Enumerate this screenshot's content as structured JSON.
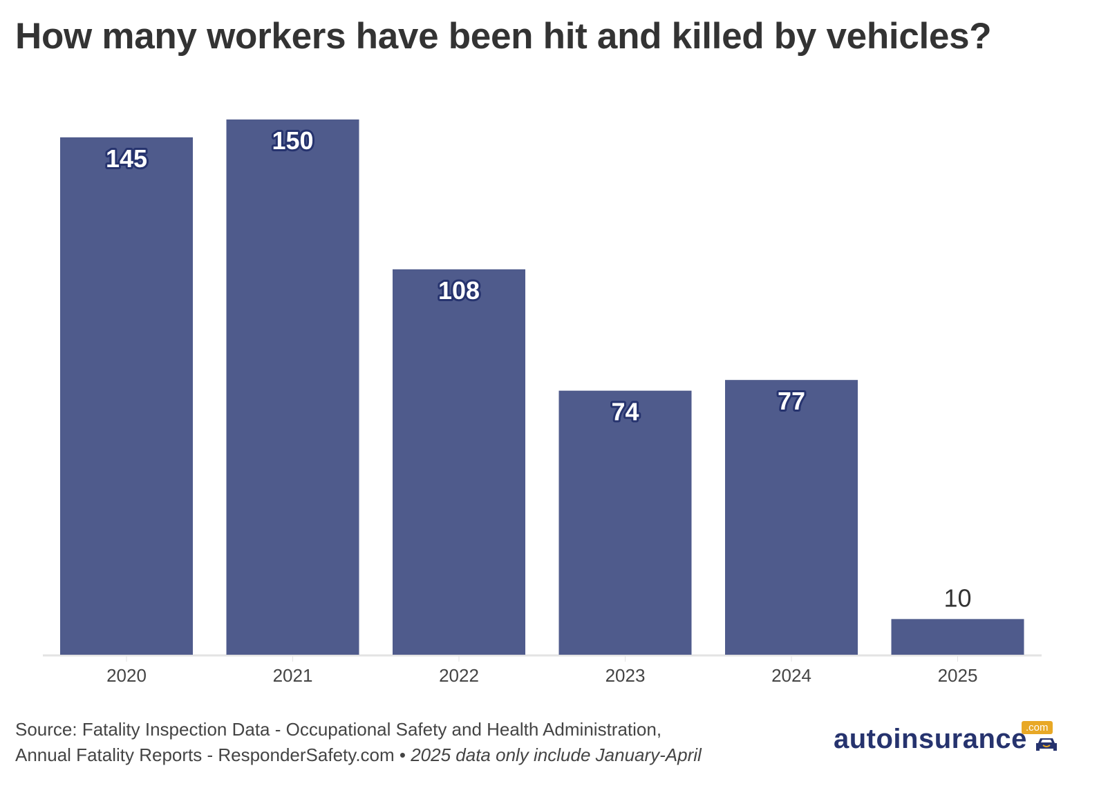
{
  "title": "How many workers have been hit and killed by vehicles?",
  "chart_data": {
    "type": "bar",
    "categories": [
      "2020",
      "2021",
      "2022",
      "2023",
      "2024",
      "2025"
    ],
    "values": [
      145,
      150,
      108,
      74,
      77,
      10
    ],
    "title": "How many workers have been hit and killed by vehicles?",
    "xlabel": "",
    "ylabel": "",
    "ylim": [
      0,
      150
    ],
    "grid": false,
    "bar_color": "#4f5b8c",
    "label_outline_color": "#26336e"
  },
  "source": {
    "line1": "Source: Fatality Inspection Data - Occupational Safety and Health Administration,",
    "line2": "Annual Fatality Reports - ResponderSafety.com • ",
    "note": "2025 data only include January-April"
  },
  "logo": {
    "text": "autoinsurance",
    "suffix": ".com",
    "accent": "#e8a826",
    "brand": "#26336e"
  }
}
